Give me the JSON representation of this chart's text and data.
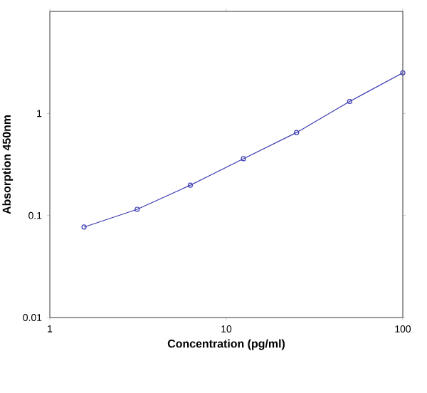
{
  "chart_data": {
    "type": "line",
    "xlabel": "Concentration (pg/ml)",
    "ylabel": "Absorption 450nm",
    "x": [
      1.5625,
      3.125,
      6.25,
      12.5,
      25,
      50,
      100
    ],
    "series": [
      {
        "color": "#3a3ab0",
        "values": [
          0.077,
          0.115,
          0.198,
          0.36,
          0.65,
          1.31,
          2.5
        ]
      }
    ],
    "log": "xy",
    "xlim": [
      1,
      100
    ],
    "ylim": [
      0.01,
      10
    ],
    "xticks": [
      1,
      10,
      100
    ],
    "yticks": [
      0.01,
      0.1,
      1
    ],
    "marker": "circle"
  }
}
